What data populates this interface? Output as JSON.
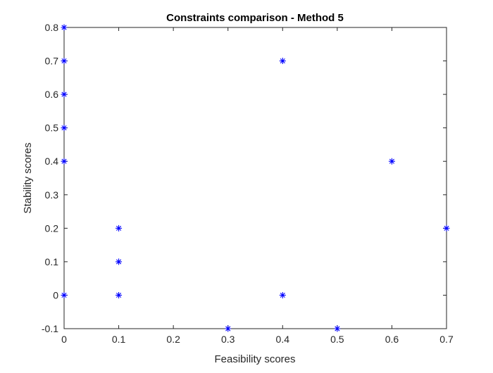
{
  "chart_data": {
    "type": "scatter",
    "title": "Constraints comparison - Method 5",
    "xlabel": "Feasibility scores",
    "ylabel": "Stability scores",
    "xlim": [
      0,
      0.7
    ],
    "ylim": [
      -0.1,
      0.8
    ],
    "xticks": [
      "0",
      "0.1",
      "0.2",
      "0.3",
      "0.4",
      "0.5",
      "0.6",
      "0.7"
    ],
    "yticks": [
      "-0.1",
      "0",
      "0.1",
      "0.2",
      "0.3",
      "0.4",
      "0.5",
      "0.6",
      "0.7",
      "0.8"
    ],
    "marker": "asterisk",
    "marker_color": "#0000ff",
    "grid": false,
    "box": true,
    "points": [
      {
        "x": 0,
        "y": 0.8
      },
      {
        "x": 0,
        "y": 0.7
      },
      {
        "x": 0,
        "y": 0.6
      },
      {
        "x": 0,
        "y": 0.5
      },
      {
        "x": 0,
        "y": 0.4
      },
      {
        "x": 0,
        "y": 0
      },
      {
        "x": 0.1,
        "y": 0.2
      },
      {
        "x": 0.1,
        "y": 0.1
      },
      {
        "x": 0.1,
        "y": 0
      },
      {
        "x": 0.3,
        "y": -0.1
      },
      {
        "x": 0.4,
        "y": 0.7
      },
      {
        "x": 0.4,
        "y": 0
      },
      {
        "x": 0.5,
        "y": -0.1
      },
      {
        "x": 0.6,
        "y": 0.4
      },
      {
        "x": 0.7,
        "y": 0.2
      }
    ]
  }
}
